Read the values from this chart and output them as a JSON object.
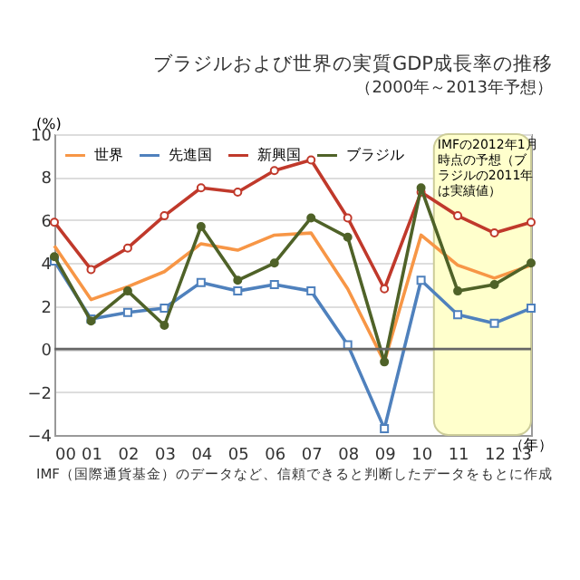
{
  "chart_data": {
    "type": "line",
    "title": "ブラジルおよび世界の実質GDP成長率の推移",
    "subtitle": "（2000年～2013年予想）",
    "ylabel": "(%)",
    "xlabel": "（年）",
    "x": [
      0,
      1,
      2,
      3,
      4,
      5,
      6,
      7,
      8,
      9,
      10,
      11,
      12,
      13
    ],
    "xlim": [
      0,
      13
    ],
    "xticks": [
      {
        "value": 0,
        "label": "00"
      },
      {
        "value": 1,
        "label": "01"
      },
      {
        "value": 2,
        "label": "02"
      },
      {
        "value": 3,
        "label": "03"
      },
      {
        "value": 4,
        "label": "04"
      },
      {
        "value": 5,
        "label": "05"
      },
      {
        "value": 6,
        "label": "06"
      },
      {
        "value": 7,
        "label": "07"
      },
      {
        "value": 8,
        "label": "08"
      },
      {
        "value": 9,
        "label": "09"
      },
      {
        "value": 10,
        "label": "10"
      },
      {
        "value": 11,
        "label": "11"
      },
      {
        "value": 12,
        "label": "12"
      },
      {
        "value": 13,
        "label": "13"
      }
    ],
    "ylim": [
      -4,
      10
    ],
    "yticks": [
      -4,
      -2,
      0,
      2,
      4,
      6,
      8,
      10
    ],
    "grid": "y",
    "legend": "top left",
    "series": [
      {
        "name": "世界",
        "color": "#f79646",
        "marker": "none",
        "values": [
          4.8,
          2.3,
          2.9,
          3.6,
          4.9,
          4.6,
          5.3,
          5.4,
          2.8,
          -0.6,
          5.3,
          3.9,
          3.3,
          3.9
        ]
      },
      {
        "name": "先進国",
        "color": "#4f81bd",
        "marker": "square",
        "values": [
          4.1,
          1.4,
          1.7,
          1.9,
          3.1,
          2.7,
          3.0,
          2.7,
          0.2,
          -3.7,
          3.2,
          1.6,
          1.2,
          1.9
        ]
      },
      {
        "name": "新興国",
        "color": "#c0392b",
        "marker": "circle",
        "values": [
          5.9,
          3.7,
          4.7,
          6.2,
          7.5,
          7.3,
          8.3,
          8.8,
          6.1,
          2.8,
          7.3,
          6.2,
          5.4,
          5.9
        ]
      },
      {
        "name": "ブラジル",
        "color": "#4f6228",
        "marker": "circle",
        "values": [
          4.3,
          1.3,
          2.7,
          1.1,
          5.7,
          3.2,
          4.0,
          6.1,
          5.2,
          -0.6,
          7.5,
          2.7,
          3.0,
          4.0
        ]
      }
    ],
    "bands": [
      {
        "axis": "x",
        "from": 10.35,
        "to": 13,
        "label": "IMFの2012年1月時点の予想（ブラジルの2011年は実績値）",
        "color": "#ffffcc"
      }
    ],
    "ref_lines": [
      {
        "axis": "y",
        "value": 0,
        "color": "#666666"
      }
    ],
    "annotations": [
      "IMF（国際通貨基金）のデータなど、信頼できると判断したデータをもとに作成"
    ]
  }
}
